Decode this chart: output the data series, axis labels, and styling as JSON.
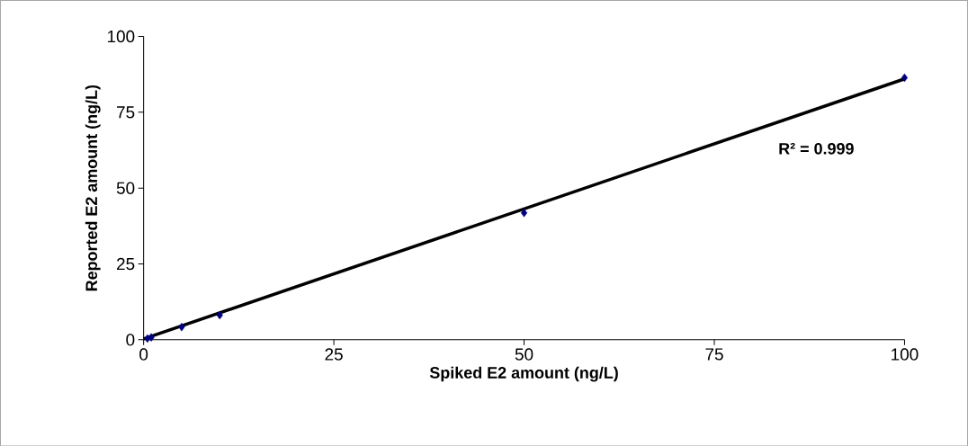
{
  "chart_data": {
    "type": "scatter",
    "xlabel": "Spiked E2 amount (ng/L)",
    "ylabel": "Reported E2 amount (ng/L)",
    "series": [
      {
        "color": "#000080",
        "marker": "diamond",
        "x": [
          0.5,
          1,
          5,
          10,
          50,
          100
        ],
        "values": [
          0.4,
          0.8,
          4.2,
          8.1,
          41.8,
          86.4
        ]
      },
      {
        "type": "line",
        "color": "#000000",
        "marker": "none",
        "line_style": "solid",
        "x": [
          0,
          100
        ],
        "values": [
          0.3,
          86.0
        ]
      }
    ],
    "annotations": [
      "R² = 0.999"
    ],
    "xlim": [
      0,
      100
    ],
    "ylim": [
      0,
      100
    ],
    "xticks": [
      0,
      25,
      50,
      75,
      100
    ],
    "yticks": [
      0,
      25,
      50,
      75,
      100
    ],
    "grid": false
  }
}
